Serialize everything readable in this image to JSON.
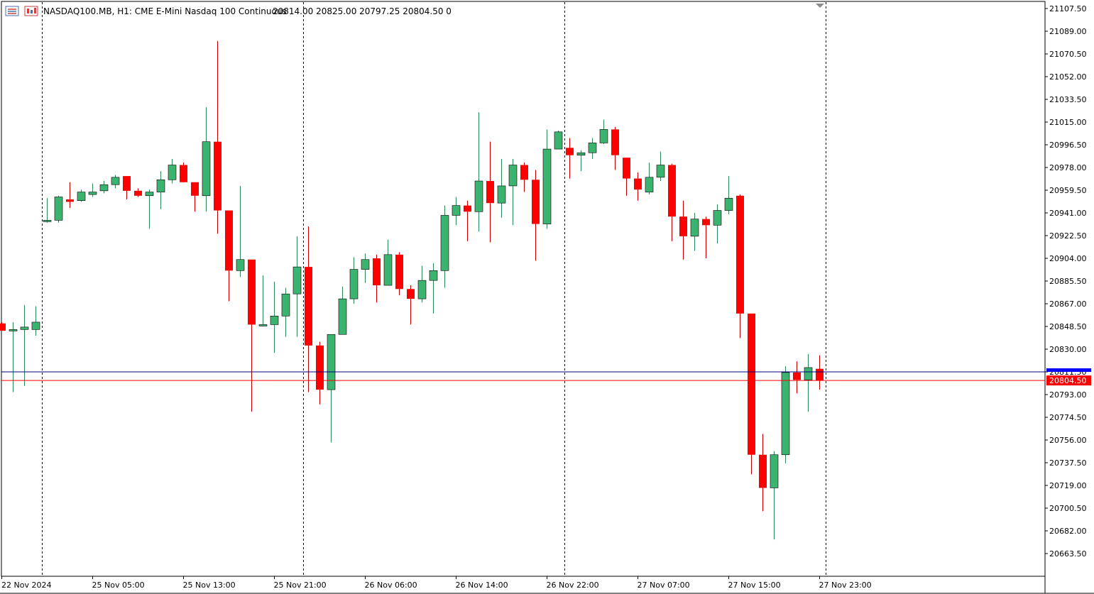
{
  "header": {
    "symbol_info": "NASDAQ100.MB, H1:  CME E-Mini Nasdaq 100 Continuous",
    "ohlc": "20814.00 20825.00 20797.25 20804.50  0"
  },
  "toolbar_icons": [
    "trade-panel-icon",
    "chart-objects-icon"
  ],
  "colors": {
    "bull_body": "#3cb371",
    "bear_body": "#ff0000",
    "ask_line": "#000080",
    "bid_line": "#ff0000",
    "grid_separator": "#000000"
  },
  "price_labels": {
    "ask_marker": "20811.50",
    "bid_marker": "20804.50"
  },
  "chart_data": {
    "type": "candlestick",
    "timeframe": "H1",
    "grid": false,
    "period_separators": true,
    "ylim": [
      20650.0,
      21110.0
    ],
    "y_ticks": [
      "21107.50",
      "21089.00",
      "21070.50",
      "21052.00",
      "21033.50",
      "21015.00",
      "20996.50",
      "20978.00",
      "20959.50",
      "20941.00",
      "20922.50",
      "20904.00",
      "20885.50",
      "20867.00",
      "20848.50",
      "20830.00",
      "20811.50",
      "20793.00",
      "20774.50",
      "20756.00",
      "20737.50",
      "20719.00",
      "20700.50",
      "20682.00",
      "20663.50"
    ],
    "x_ticks": [
      {
        "label": "22 Nov 2024",
        "index": 0
      },
      {
        "label": "25 Nov 05:00",
        "index": 8
      },
      {
        "label": "25 Nov 13:00",
        "index": 16
      },
      {
        "label": "25 Nov 21:00",
        "index": 24
      },
      {
        "label": "26 Nov 06:00",
        "index": 32
      },
      {
        "label": "26 Nov 14:00",
        "index": 40
      },
      {
        "label": "26 Nov 22:00",
        "index": 48
      },
      {
        "label": "27 Nov 07:00",
        "index": 56
      },
      {
        "label": "27 Nov 15:00",
        "index": 64
      },
      {
        "label": "27 Nov 23:00",
        "index": 72
      }
    ],
    "separators_after_index": [
      3.5,
      26.5,
      49.5,
      72.5
    ],
    "candles": [
      {
        "o": 20851,
        "h": 20852,
        "l": 20845,
        "c": 20845
      },
      {
        "o": 20846,
        "h": 20852,
        "l": 20795,
        "c": 20846
      },
      {
        "o": 20846,
        "h": 20866,
        "l": 20800,
        "c": 20848
      },
      {
        "o": 20846,
        "h": 20865,
        "l": 20841,
        "c": 20852
      },
      {
        "o": 20934,
        "h": 20953,
        "l": 20933,
        "c": 20935
      },
      {
        "o": 20935,
        "h": 20955,
        "l": 20933,
        "c": 20954
      },
      {
        "o": 20952,
        "h": 20966,
        "l": 20945,
        "c": 20950
      },
      {
        "o": 20951,
        "h": 20960,
        "l": 20950,
        "c": 20958
      },
      {
        "o": 20956,
        "h": 20965,
        "l": 20954,
        "c": 20958
      },
      {
        "o": 20959,
        "h": 20967,
        "l": 20957,
        "c": 20964
      },
      {
        "o": 20964,
        "h": 20972,
        "l": 20961,
        "c": 20970
      },
      {
        "o": 20971,
        "h": 20971,
        "l": 20952,
        "c": 20959
      },
      {
        "o": 20959,
        "h": 20961,
        "l": 20954,
        "c": 20955
      },
      {
        "o": 20955,
        "h": 20960,
        "l": 20928,
        "c": 20958
      },
      {
        "o": 20958,
        "h": 20975,
        "l": 20944,
        "c": 20968
      },
      {
        "o": 20968,
        "h": 20985,
        "l": 20965,
        "c": 20980
      },
      {
        "o": 20980,
        "h": 20982,
        "l": 20966,
        "c": 20966
      },
      {
        "o": 20966,
        "h": 20966,
        "l": 20942,
        "c": 20955
      },
      {
        "o": 20955,
        "h": 21027,
        "l": 20942,
        "c": 20999
      },
      {
        "o": 20999,
        "h": 21081,
        "l": 20924,
        "c": 20943
      },
      {
        "o": 20943,
        "h": 20943,
        "l": 20869,
        "c": 20894
      },
      {
        "o": 20894,
        "h": 20963,
        "l": 20889,
        "c": 20903
      },
      {
        "o": 20903,
        "h": 20903,
        "l": 20779,
        "c": 20850
      },
      {
        "o": 20850,
        "h": 20890,
        "l": 20849,
        "c": 20850
      },
      {
        "o": 20850,
        "h": 20885,
        "l": 20827,
        "c": 20857
      },
      {
        "o": 20857,
        "h": 20880,
        "l": 20840,
        "c": 20875
      },
      {
        "o": 20875,
        "h": 20922,
        "l": 20840,
        "c": 20897
      },
      {
        "o": 20897,
        "h": 20930,
        "l": 20795,
        "c": 20833
      },
      {
        "o": 20833,
        "h": 20836,
        "l": 20785,
        "c": 20797
      },
      {
        "o": 20797,
        "h": 20840,
        "l": 20754,
        "c": 20842
      },
      {
        "o": 20842,
        "h": 20881,
        "l": 20842,
        "c": 20871
      },
      {
        "o": 20871,
        "h": 20905,
        "l": 20867,
        "c": 20895
      },
      {
        "o": 20895,
        "h": 20908,
        "l": 20884,
        "c": 20903
      },
      {
        "o": 20904,
        "h": 20907,
        "l": 20868,
        "c": 20882
      },
      {
        "o": 20882,
        "h": 20919,
        "l": 20882,
        "c": 20907
      },
      {
        "o": 20907,
        "h": 20909,
        "l": 20874,
        "c": 20879
      },
      {
        "o": 20879,
        "h": 20882,
        "l": 20850,
        "c": 20871
      },
      {
        "o": 20871,
        "h": 20898,
        "l": 20868,
        "c": 20886
      },
      {
        "o": 20886,
        "h": 20900,
        "l": 20859,
        "c": 20894
      },
      {
        "o": 20894,
        "h": 20947,
        "l": 20880,
        "c": 20939
      },
      {
        "o": 20939,
        "h": 20954,
        "l": 20931,
        "c": 20947
      },
      {
        "o": 20947,
        "h": 20951,
        "l": 20918,
        "c": 20942
      },
      {
        "o": 20942,
        "h": 21023,
        "l": 20926,
        "c": 20967
      },
      {
        "o": 20967,
        "h": 20999,
        "l": 20917,
        "c": 20949
      },
      {
        "o": 20949,
        "h": 20985,
        "l": 20937,
        "c": 20963
      },
      {
        "o": 20963,
        "h": 20985,
        "l": 20931,
        "c": 20980
      },
      {
        "o": 20980,
        "h": 20982,
        "l": 20958,
        "c": 20968
      },
      {
        "o": 20968,
        "h": 20976,
        "l": 20902,
        "c": 20932
      },
      {
        "o": 20932,
        "h": 21009,
        "l": 20928,
        "c": 20993
      },
      {
        "o": 20993,
        "h": 21008,
        "l": 20993,
        "c": 21007
      },
      {
        "o": 20994,
        "h": 21002,
        "l": 20969,
        "c": 20988
      },
      {
        "o": 20988,
        "h": 20992,
        "l": 20975,
        "c": 20990
      },
      {
        "o": 20990,
        "h": 21002,
        "l": 20985,
        "c": 20998
      },
      {
        "o": 20998,
        "h": 21017,
        "l": 20997,
        "c": 21009
      },
      {
        "o": 21009,
        "h": 21011,
        "l": 20976,
        "c": 20988
      },
      {
        "o": 20986,
        "h": 20986,
        "l": 20955,
        "c": 20969
      },
      {
        "o": 20969,
        "h": 20974,
        "l": 20951,
        "c": 20960
      },
      {
        "o": 20958,
        "h": 20982,
        "l": 20956,
        "c": 20970
      },
      {
        "o": 20970,
        "h": 20991,
        "l": 20967,
        "c": 20980
      },
      {
        "o": 20980,
        "h": 20981,
        "l": 20918,
        "c": 20938
      },
      {
        "o": 20938,
        "h": 20951,
        "l": 20903,
        "c": 20922
      },
      {
        "o": 20922,
        "h": 20941,
        "l": 20910,
        "c": 20936
      },
      {
        "o": 20936,
        "h": 20938,
        "l": 20904,
        "c": 20931
      },
      {
        "o": 20931,
        "h": 20948,
        "l": 20916,
        "c": 20943
      },
      {
        "o": 20943,
        "h": 20971,
        "l": 20940,
        "c": 20953
      },
      {
        "o": 20955,
        "h": 20956,
        "l": 20839,
        "c": 20859
      },
      {
        "o": 20859,
        "h": 20859,
        "l": 20728,
        "c": 20744
      },
      {
        "o": 20744,
        "h": 20761,
        "l": 20698,
        "c": 20717
      },
      {
        "o": 20717,
        "h": 20747,
        "l": 20675,
        "c": 20744
      },
      {
        "o": 20744,
        "h": 20816,
        "l": 20737,
        "c": 20811
      },
      {
        "o": 20811,
        "h": 20820,
        "l": 20794,
        "c": 20805
      },
      {
        "o": 20805,
        "h": 20826,
        "l": 20779,
        "c": 20815
      },
      {
        "o": 20814,
        "h": 20825,
        "l": 20797,
        "c": 20804.5
      }
    ]
  }
}
